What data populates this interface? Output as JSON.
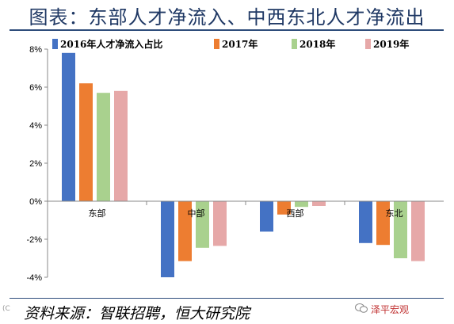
{
  "title": "图表：东部人才净流入、中西东北人才净流出",
  "source": "资料来源：智联招聘，恒大研究院",
  "watermark": "泽平宏观",
  "corner_mark": "(C",
  "colors": {
    "2016": "#4472c4",
    "2017": "#ed7d31",
    "2018": "#a9d18e",
    "2019": "#e6a8a8"
  },
  "chart_data": {
    "type": "bar",
    "categories": [
      "东部",
      "中部",
      "西部",
      "东北"
    ],
    "series": [
      {
        "name": "2016年人才净流入占比",
        "values": [
          7.8,
          -4.0,
          -1.6,
          -2.2
        ]
      },
      {
        "name": "2017年",
        "values": [
          6.2,
          -3.15,
          -0.7,
          -2.3
        ]
      },
      {
        "name": "2018年",
        "values": [
          5.7,
          -2.45,
          -0.3,
          -3.0
        ]
      },
      {
        "name": "2019年",
        "values": [
          5.8,
          -2.35,
          -0.25,
          -3.15
        ]
      }
    ],
    "ylim": [
      -4,
      8
    ],
    "yticks": [
      "-4%",
      "-2%",
      "0%",
      "2%",
      "4%",
      "6%",
      "8%"
    ],
    "legend_position": "top",
    "grid": false
  }
}
